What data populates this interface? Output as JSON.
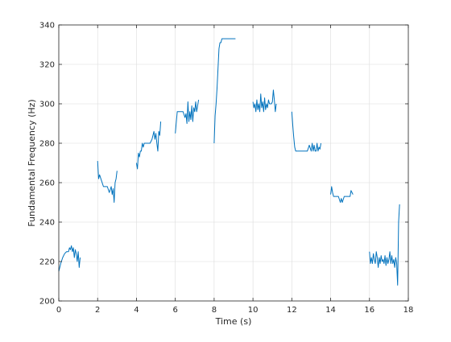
{
  "chart_data": {
    "type": "line",
    "xlabel": "Time (s)",
    "ylabel": "Fundamental Frequency (Hz)",
    "xlim": [
      0,
      18
    ],
    "ylim": [
      200,
      340
    ],
    "xticks": [
      "0",
      "2",
      "4",
      "6",
      "8",
      "10",
      "12",
      "14",
      "16",
      "18"
    ],
    "yticks": [
      "200",
      "220",
      "240",
      "260",
      "280",
      "300",
      "320",
      "340"
    ],
    "grid": true,
    "series_color": "#0072bd",
    "segments": [
      {
        "x": [
          0.0,
          0.1,
          0.2,
          0.3,
          0.4,
          0.5,
          0.55,
          0.6,
          0.65,
          0.7,
          0.75,
          0.8,
          0.85,
          0.9,
          0.95,
          1.0,
          1.05,
          1.1
        ],
        "y": [
          215,
          219,
          222,
          224,
          225,
          225,
          227,
          226,
          228,
          225,
          227,
          222,
          226,
          224,
          220,
          225,
          217,
          222
        ]
      },
      {
        "x": [
          2.0,
          2.05,
          2.1,
          2.2,
          2.3,
          2.4,
          2.5,
          2.6,
          2.7,
          2.75,
          2.8,
          2.85,
          2.9,
          2.95,
          3.0
        ],
        "y": [
          271,
          262,
          264,
          261,
          258,
          258,
          258,
          255,
          258,
          254,
          257,
          250,
          260,
          262,
          266
        ]
      },
      {
        "x": [
          4.0,
          4.05,
          4.1,
          4.15,
          4.2,
          4.25,
          4.3,
          4.35,
          4.4,
          4.5,
          4.6,
          4.7,
          4.8,
          4.9,
          4.95,
          5.0,
          5.05,
          5.1,
          5.15,
          5.2,
          5.25
        ],
        "y": [
          270,
          267,
          275,
          273,
          276,
          276,
          280,
          278,
          280,
          280,
          280,
          280,
          282,
          286,
          282,
          285,
          280,
          276,
          286,
          284,
          291
        ]
      },
      {
        "x": [
          6.0,
          6.1,
          6.2,
          6.3,
          6.4,
          6.5,
          6.55,
          6.6,
          6.65,
          6.7,
          6.75,
          6.8,
          6.85,
          6.9,
          6.95,
          7.0,
          7.05,
          7.1,
          7.15,
          7.2
        ],
        "y": [
          285,
          296,
          296,
          296,
          296,
          293,
          295,
          290,
          301,
          291,
          296,
          292,
          299,
          291,
          298,
          296,
          301,
          296,
          299,
          302
        ]
      },
      {
        "x": [
          8.0,
          8.05,
          8.1,
          8.15,
          8.2,
          8.25,
          8.3,
          8.35,
          8.4,
          8.6,
          8.8,
          9.0,
          9.1
        ],
        "y": [
          280,
          294,
          300,
          308,
          318,
          328,
          331,
          331,
          333,
          333,
          333,
          333,
          333
        ]
      },
      {
        "x": [
          10.0,
          10.05,
          10.1,
          10.15,
          10.2,
          10.25,
          10.3,
          10.35,
          10.4,
          10.45,
          10.5,
          10.55,
          10.6,
          10.65,
          10.7,
          10.75,
          10.8,
          10.85,
          10.9,
          10.95,
          11.0,
          11.05,
          11.1,
          11.15,
          11.2
        ],
        "y": [
          301,
          298,
          300,
          296,
          302,
          297,
          300,
          296,
          305,
          298,
          301,
          296,
          303,
          297,
          300,
          298,
          302,
          300,
          300,
          300,
          301,
          307,
          302,
          296,
          300
        ]
      },
      {
        "x": [
          12.0,
          12.05,
          12.1,
          12.15,
          12.2,
          12.3,
          12.4,
          12.5,
          12.6,
          12.7,
          12.8,
          12.9,
          13.0,
          13.05,
          13.1,
          13.15,
          13.2,
          13.25,
          13.3,
          13.35,
          13.4,
          13.45,
          13.5
        ],
        "y": [
          296,
          289,
          283,
          278,
          276,
          276,
          276,
          276,
          276,
          276,
          276,
          279,
          276,
          280,
          276,
          279,
          276,
          276,
          280,
          276,
          278,
          277,
          280
        ]
      },
      {
        "x": [
          14.0,
          14.05,
          14.1,
          14.15,
          14.2,
          14.3,
          14.4,
          14.5,
          14.55,
          14.6,
          14.7,
          14.8,
          14.9,
          15.0,
          15.05,
          15.1,
          15.15
        ],
        "y": [
          254,
          258,
          255,
          253,
          253,
          253,
          253,
          250,
          252,
          250,
          253,
          253,
          253,
          253,
          256,
          255,
          254
        ]
      },
      {
        "x": [
          16.0,
          16.05,
          16.1,
          16.15,
          16.2,
          16.25,
          16.3,
          16.35,
          16.4,
          16.45,
          16.5,
          16.55,
          16.6,
          16.65,
          16.7,
          16.75,
          16.8,
          16.85,
          16.9,
          16.95,
          17.0,
          17.05,
          17.1,
          17.15,
          17.2,
          17.25,
          17.3,
          17.35,
          17.4,
          17.45,
          17.5,
          17.55
        ],
        "y": [
          225,
          219,
          222,
          219,
          224,
          221,
          219,
          225,
          222,
          217,
          222,
          219,
          223,
          220,
          221,
          219,
          223,
          218,
          222,
          219,
          221,
          225,
          219,
          223,
          219,
          221,
          217,
          222,
          219,
          208,
          240,
          249
        ]
      }
    ]
  }
}
